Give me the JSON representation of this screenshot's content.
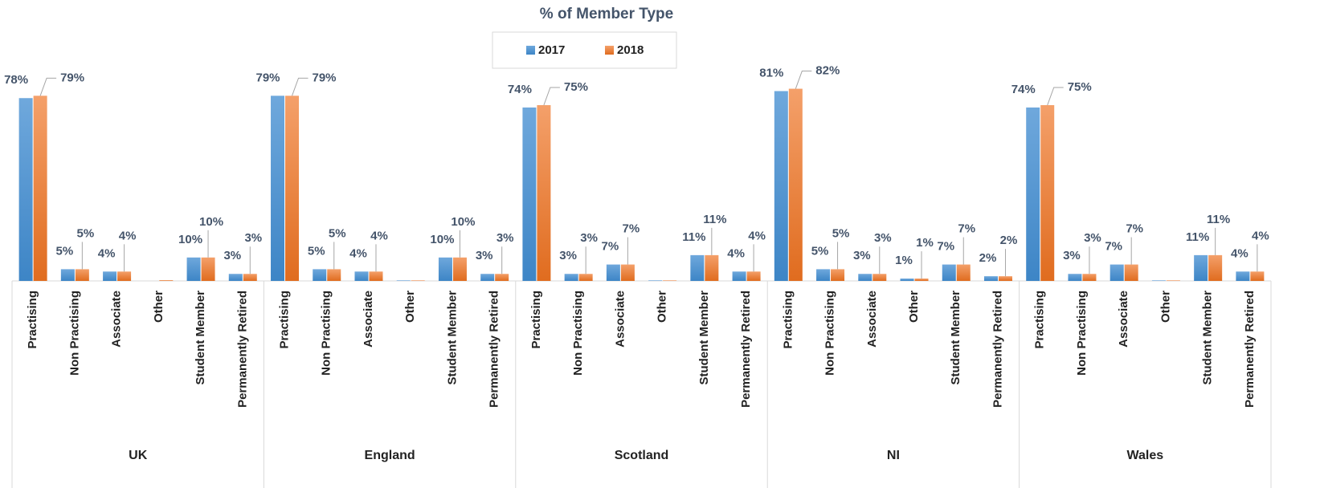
{
  "chart_data": {
    "type": "bar",
    "title": "% of Member Type",
    "categories": [
      "Practising",
      "Non Practising",
      "Associate",
      "Other",
      "Student Member",
      "Permanently Retired",
      "Practising",
      "Non Practising",
      "Associate",
      "Other",
      "Student Member",
      "Permanently Retired",
      "Practising",
      "Non Practising",
      "Associate",
      "Other",
      "Student Member",
      "Permanently Retired",
      "Practising",
      "Non Practising",
      "Associate",
      "Other",
      "Student Member",
      "Permanently Retired",
      "Practising",
      "Non Practising",
      "Associate",
      "Other",
      "Student Member",
      "Permanently Retired"
    ],
    "groups": [
      "UK",
      "England",
      "Scotland",
      "NI",
      "Wales"
    ],
    "series": [
      {
        "name": "2017",
        "color": "#5b9bd5",
        "values": [
          78,
          5,
          4,
          0,
          10,
          3,
          79,
          5,
          4,
          0.2,
          10,
          3,
          74,
          3,
          7,
          0.2,
          11,
          4,
          81,
          5,
          3,
          1,
          7,
          2,
          74,
          3,
          7,
          0.2,
          11,
          4
        ],
        "value_labels": [
          "78%",
          "5%",
          "4%",
          null,
          "10%",
          "3%",
          "79%",
          "5%",
          "4%",
          null,
          "10%",
          "3%",
          "74%",
          "3%",
          "7%",
          null,
          "11%",
          "4%",
          "81%",
          "5%",
          "3%",
          "1%",
          "7%",
          "2%",
          "74%",
          "3%",
          "7%",
          null,
          "11%",
          "4%"
        ]
      },
      {
        "name": "2018",
        "color": "#ed7d31",
        "values": [
          79,
          5,
          4,
          0.3,
          10,
          3,
          79,
          5,
          4,
          0.2,
          10,
          3,
          75,
          3,
          7,
          0.2,
          11,
          4,
          82,
          5,
          3,
          1,
          7,
          2,
          75,
          3,
          7,
          0.2,
          11,
          4
        ],
        "value_labels": [
          "79%",
          "5%",
          "4%",
          null,
          "10%",
          "3%",
          "79%",
          "5%",
          "4%",
          null,
          "10%",
          "3%",
          "75%",
          "3%",
          "7%",
          null,
          "11%",
          "4%",
          "82%",
          "5%",
          "3%",
          "1%",
          "7%",
          "2%",
          "75%",
          "3%",
          "7%",
          null,
          "11%",
          "4%"
        ]
      }
    ],
    "legend": "top"
  }
}
